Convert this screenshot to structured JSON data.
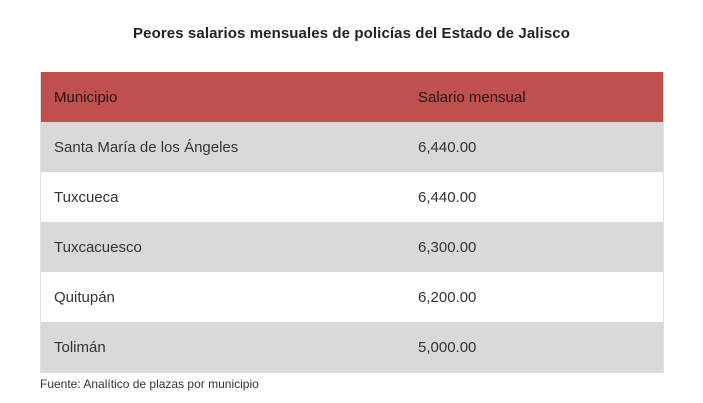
{
  "chart_data": {
    "type": "table",
    "title": "Peores salarios mensuales de policías del Estado de Jalisco",
    "columns": [
      "Municipio",
      "Salario mensual"
    ],
    "rows": [
      [
        "Santa María de los Ángeles",
        "6,440.00"
      ],
      [
        "Tuxcueca",
        "6,440.00"
      ],
      [
        "Tuxcacuesco",
        "6,300.00"
      ],
      [
        "Quitupán",
        "6,200.00"
      ],
      [
        "Tolimán",
        "5,000.00"
      ]
    ],
    "values": [
      6440,
      6440,
      6300,
      6200,
      5000
    ],
    "source": "Fuente: Analítico de plazas por municipio"
  },
  "colors": {
    "header_bg": "#c0504d",
    "shade_row_bg": "#d9d9d9",
    "plain_row_bg": "#ffffff"
  }
}
